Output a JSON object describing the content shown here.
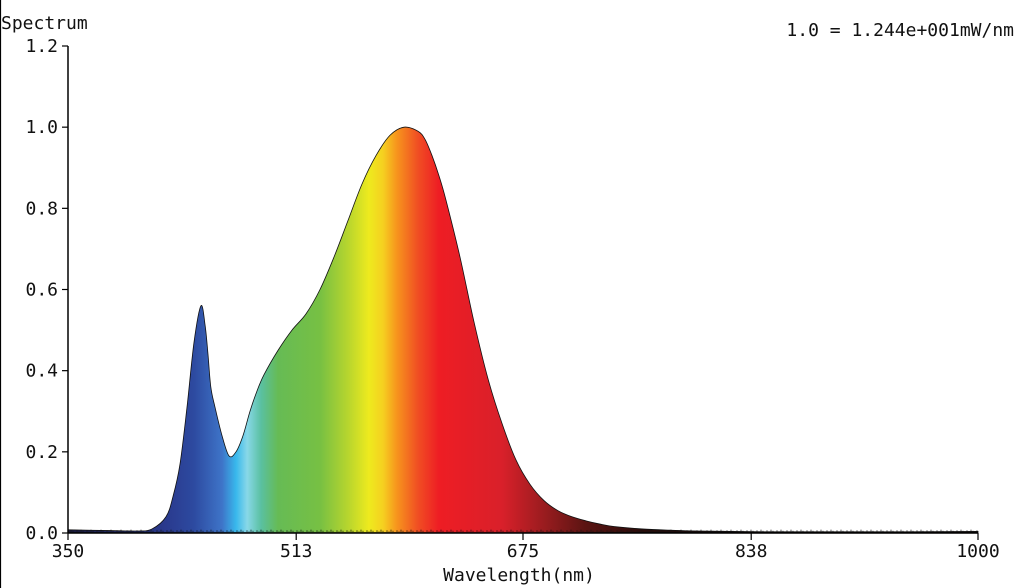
{
  "chart_data": {
    "type": "area",
    "title": "Spectrum",
    "scale_note": "1.0 = 1.244e+001mW/nm",
    "xlabel": "Wavelength(nm)",
    "ylabel": "",
    "xlim": [
      350,
      1000
    ],
    "ylim": [
      0,
      1.2
    ],
    "x_ticks": [
      "350",
      "513",
      "675",
      "838",
      "1000"
    ],
    "y_ticks": [
      "0.0",
      "0.2",
      "0.4",
      "0.6",
      "0.8",
      "1.0",
      "1.2"
    ],
    "grid": false,
    "fill": "visible-spectrum color gradient",
    "series": [
      {
        "x": [
          350,
          380,
          400,
          410,
          420,
          425,
          430,
          435,
          440,
          445,
          448,
          450,
          452,
          455,
          460,
          465,
          470,
          475,
          480,
          485,
          490,
          500,
          510,
          520,
          530,
          540,
          550,
          560,
          570,
          580,
          590,
          600,
          605,
          610,
          615,
          620,
          630,
          640,
          650,
          660,
          670,
          680,
          690,
          700,
          710,
          720,
          730,
          740,
          760,
          780,
          800,
          850,
          900,
          950,
          1000
        ],
        "y": [
          0.008,
          0.006,
          0.005,
          0.01,
          0.04,
          0.09,
          0.17,
          0.31,
          0.47,
          0.56,
          0.51,
          0.44,
          0.36,
          0.31,
          0.24,
          0.19,
          0.2,
          0.24,
          0.3,
          0.35,
          0.39,
          0.45,
          0.5,
          0.54,
          0.6,
          0.68,
          0.77,
          0.86,
          0.93,
          0.98,
          1.0,
          0.99,
          0.97,
          0.93,
          0.88,
          0.82,
          0.68,
          0.52,
          0.38,
          0.27,
          0.18,
          0.12,
          0.08,
          0.055,
          0.04,
          0.03,
          0.022,
          0.016,
          0.01,
          0.007,
          0.005,
          0.003,
          0.003,
          0.003,
          0.004
        ]
      }
    ]
  }
}
